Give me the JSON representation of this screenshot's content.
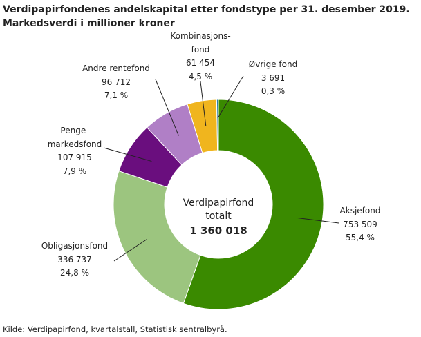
{
  "chart_data": {
    "type": "donut",
    "title": "Verdipapirfondenes andelskapital etter fondstype per 31. desember 2019.",
    "subtitle": "Markedsverdi i millioner kroner",
    "categories": [
      "Aksjefond",
      "Obligasjonsfond",
      "Penge-\nmarkedsfond",
      "Andre rentefond",
      "Kombinasjons-\nfond",
      "Øvrige fond"
    ],
    "values": [
      753509,
      336737,
      107915,
      96712,
      61454,
      3691
    ],
    "value_labels": [
      "753 509",
      "336 737",
      "107 915",
      "96 712",
      "61 454",
      "3 691"
    ],
    "percentages": [
      55.4,
      24.8,
      7.9,
      7.1,
      4.5,
      0.3
    ],
    "percentage_labels": [
      "55,4 %",
      "24,8 %",
      "7,9 %",
      "7,1 %",
      "4,5 %",
      "0,3 %"
    ],
    "colors": [
      "#3a8a00",
      "#9cc57f",
      "#6a0e7e",
      "#b07fc6",
      "#f0b51e",
      "#2a7fa8"
    ],
    "center_label": "Verdipapirfond\ntotalt",
    "total": 1360018,
    "total_label": "1 360 018",
    "source": "Kilde: Verdipapirfond, kvartalstall, Statistisk sentralbyrå."
  }
}
